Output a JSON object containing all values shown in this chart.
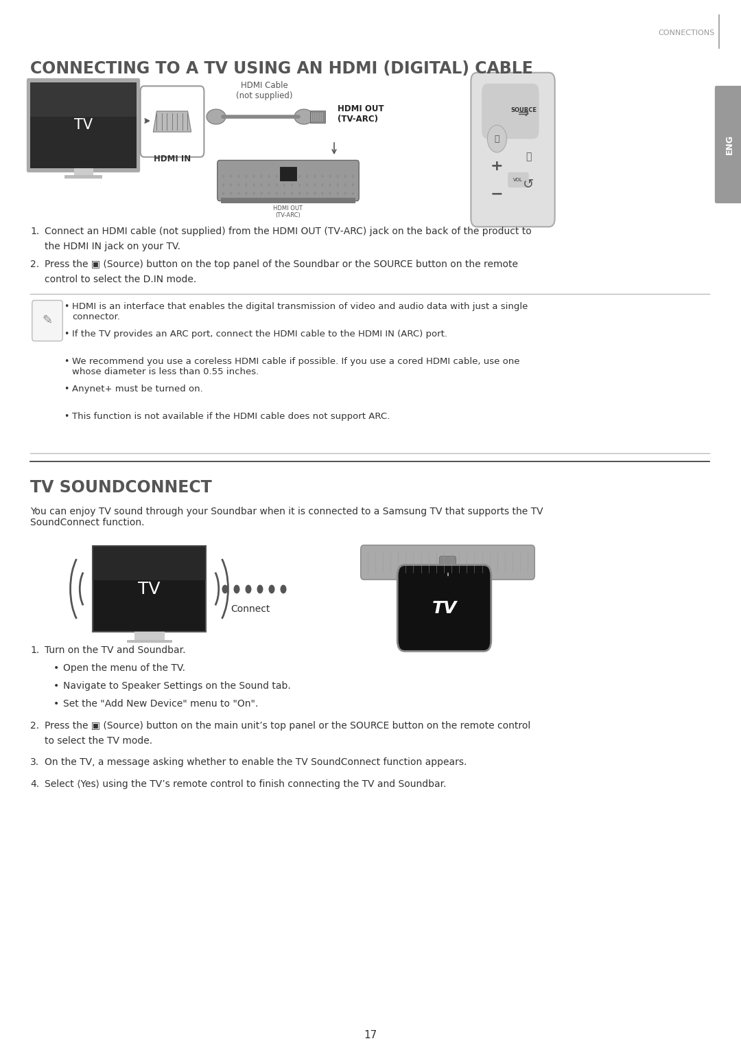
{
  "page_bg": "#ffffff",
  "page_width": 10.8,
  "page_height": 15.32,
  "top_label": "CONNECTIONS",
  "top_label_color": "#999999",
  "section1_title": "CONNECTING TO A TV USING AN HDMI (DIGITAL) CABLE",
  "section1_title_color": "#555555",
  "section2_title": "TV SOUNDCONNECT",
  "section2_title_color": "#555555",
  "hdmi_cable_label": "HDMI Cable\n(not supplied)",
  "hdmi_in_label": "HDMI IN",
  "hdmi_out_label": "HDMI OUT\n(TV-ARC)",
  "hdmi_out_label2": "HDMI OUT\n(TV-ARC)",
  "note_bullets": [
    "HDMI is an interface that enables the digital transmission of video and audio data with just a single\nconnector.",
    "If the TV provides an ARC port, connect the HDMI cable to the HDMI IN (ARC) port.",
    "We recommend you use a coreless HDMI cable if possible. If you use a cored HDMI cable, use one\nwhose diameter is less than 0.55 inches.",
    "Anynet+ must be turned on.",
    "This function is not available if the HDMI cable does not support ARC."
  ],
  "sc_description": "You can enjoy TV sound through your Soundbar when it is connected to a Samsung TV that supports the TV\nSoundConnect function.",
  "sc_connect_label": "Connect",
  "sc_step1_text": "Turn on the TV and Soundbar.",
  "sc_step1_bullets": [
    "Open the menu of the TV.",
    "Navigate to Speaker Settings on the Sound tab.",
    "Set the \"Add New Device\" menu to \"On\"."
  ],
  "sc_step3": "On the TV, a message asking whether to enable the TV SoundConnect function appears.",
  "page_number": "17",
  "text_color": "#333333",
  "light_text_color": "#666666"
}
